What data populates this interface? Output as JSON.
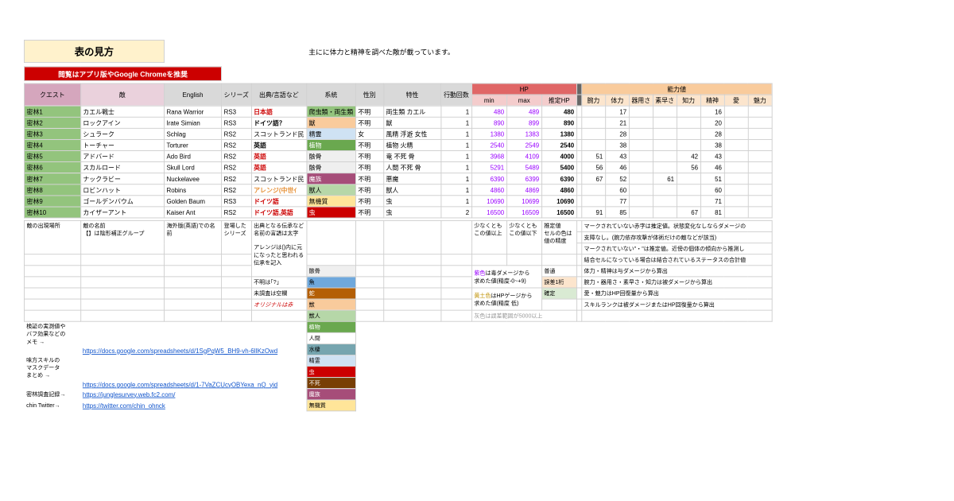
{
  "title": "表の見方",
  "subtitle": "主にに体力と精神を調べた敵が載っています。",
  "banner": "閲覧はアプリ版やGoogle Chromeを推奨",
  "headers": {
    "quest": "クエスト",
    "enemy": "敵",
    "english": "English",
    "series": "シリーズ",
    "source": "出典/言語など",
    "system": "系統",
    "sex": "性別",
    "toku": "特性",
    "act": "行動回数",
    "hp": "HP",
    "min": "min",
    "max": "max",
    "esthp": "推定HP",
    "stat": "能力値",
    "wan": "腕力",
    "tai": "体力",
    "ki": "器用さ",
    "su": "素早さ",
    "chi": "知力",
    "sei": "精神",
    "ai": "愛",
    "mi": "魅力"
  },
  "rows": [
    {
      "q": "密林1",
      "e": "カエル戦士",
      "en": "Rana Warrior",
      "s": "RS3",
      "src": "日本語",
      "srcCls": "red-bold",
      "sys": "爬虫類・両生類",
      "sysCls": "c-parasitic",
      "sex": "不明",
      "tok": "両生類 カエル",
      "act": 1,
      "min": 480,
      "max": 489,
      "hp": 480,
      "st": [
        "",
        "17",
        "",
        "",
        "",
        "16",
        "",
        ""
      ]
    },
    {
      "q": "密林2",
      "e": "ロックアイン",
      "en": "Irate Simian",
      "s": "RS3",
      "src": "ドイツ語？",
      "srcCls": "bold",
      "sys": "獣",
      "sysCls": "c-beast",
      "sex": "不明",
      "tok": "獣",
      "act": 1,
      "min": 890,
      "max": 899,
      "hp": 890,
      "st": [
        "",
        "21",
        "",
        "",
        "",
        "20",
        "",
        ""
      ]
    },
    {
      "q": "密林3",
      "e": "シュラーク",
      "en": "Schlag",
      "s": "RS2",
      "src": "スコットランド民",
      "srcCls": "",
      "sys": "精霊",
      "sysCls": "c-spirit",
      "sex": "女",
      "tok": "風精 浮遊 女性",
      "act": 1,
      "min": 1380,
      "max": 1383,
      "hp": 1380,
      "st": [
        "",
        "28",
        "",
        "",
        "",
        "28",
        "",
        ""
      ]
    },
    {
      "q": "密林4",
      "e": "トーチャー",
      "en": "Torturer",
      "s": "RS2",
      "src": "英語",
      "srcCls": "bold",
      "sys": "植物",
      "sysCls": "c-plant",
      "sex": "不明",
      "tok": "植物 火精",
      "act": 1,
      "min": 2540,
      "max": 2549,
      "hp": 2540,
      "st": [
        "",
        "38",
        "",
        "",
        "",
        "38",
        "",
        ""
      ]
    },
    {
      "q": "密林5",
      "e": "アドバード",
      "en": "Ado Bird",
      "s": "RS2",
      "src": "英語",
      "srcCls": "red-bold",
      "sys": "骸骨",
      "sysCls": "c-skeleton",
      "sex": "不明",
      "tok": "竜 不死 骨",
      "act": 1,
      "min": 3968,
      "max": 4109,
      "hp": 4000,
      "st": [
        "51",
        "43",
        "",
        "",
        "42",
        "43",
        "",
        ""
      ]
    },
    {
      "q": "密林6",
      "e": "スカルロード",
      "en": "Skull Lord",
      "s": "RS2",
      "src": "英語",
      "srcCls": "red-bold",
      "sys": "骸骨",
      "sysCls": "c-skeleton",
      "sex": "不明",
      "tok": "人間 不死 骨",
      "act": 1,
      "min": 5291,
      "max": 5489,
      "hp": 5400,
      "st": [
        "56",
        "46",
        "",
        "",
        "56",
        "46",
        "",
        ""
      ]
    },
    {
      "q": "密林7",
      "e": "ナックラビー",
      "en": "Nuckelavee",
      "s": "RS2",
      "src": "スコットランド民",
      "srcCls": "",
      "sys": "魔族",
      "sysCls": "c-demon",
      "sex": "不明",
      "tok": "悪魔",
      "act": 1,
      "min": 6390,
      "max": 6399,
      "hp": 6390,
      "st": [
        "67",
        "52",
        "",
        "61",
        "",
        "51",
        "",
        ""
      ]
    },
    {
      "q": "密林8",
      "e": "ロビンハット",
      "en": "Robins",
      "s": "RS2",
      "src": "アレンジ(中世ｲ",
      "srcCls": "orange-bold",
      "sys": "獣人",
      "sysCls": "c-beastman",
      "sex": "不明",
      "tok": "獣人",
      "act": 1,
      "min": 4860,
      "max": 4869,
      "hp": 4860,
      "st": [
        "",
        "60",
        "",
        "",
        "",
        "60",
        "",
        ""
      ]
    },
    {
      "q": "密林9",
      "e": "ゴールデンバウム",
      "en": "Golden Baum",
      "s": "RS3",
      "src": "ドイツ語",
      "srcCls": "red-bold",
      "sys": "無機質",
      "sysCls": "c-inorganic",
      "sex": "不明",
      "tok": "虫",
      "act": 1,
      "min": 10690,
      "max": 10699,
      "hp": 10690,
      "st": [
        "",
        "77",
        "",
        "",
        "",
        "71",
        "",
        ""
      ]
    },
    {
      "q": "密林10",
      "e": "カイザーアント",
      "en": "Kaiser Ant",
      "s": "RS2",
      "src": "ドイツ語,英語",
      "srcCls": "red-bold",
      "sys": "虫",
      "sysCls": "c-insect",
      "sex": "不明",
      "tok": "虫",
      "act": 2,
      "min": 16500,
      "max": 16509,
      "hp": 16500,
      "st": [
        "91",
        "85",
        "",
        "",
        "67",
        "81",
        "",
        ""
      ]
    }
  ],
  "notes": {
    "place": "敵の出現場所",
    "name": "敵の名前\n【】は陰形補正グループ",
    "overseas": "海外版(英語)での名前",
    "series": "登場したシリーズ",
    "originCell": "出典となる伝承など\n名前の言語は太字\n\nアレンジは()内に元になったと思われる伝承を記入",
    "unknown": "不明は｢?｣",
    "uninv": "未調査は空欄",
    "original": "オリジナルは赤",
    "atleast": "少なくとも\nこの値以上",
    "atmost": "少なくとも\nこの値以下",
    "estsub": "推定値\nセルの色は\n値の精度",
    "statNote1": "マークされていない赤字は推定値。状態変化なしならダメージの",
    "statNote2": "支障なし。(腕力依存攻撃が体術だけの敵などが該当)",
    "statNote3": "マークされていない\"・\"は推定値。近傍の個体の傾向から推測し",
    "statNote4": "結合セルになっている場合は結合されているステータスの合計値",
    "purpleNote": "紫色は毒ダメージから\n求めた値(精度-0~+9)",
    "yellowNote": "黄土色はHPゲージから\n求めた値(精度 低)",
    "grayNote": "灰色は誤差範囲が5000以上",
    "normal": "普通",
    "err1": "誤差1桁",
    "conf": "確定",
    "calc1": "体力・精神は与ダメージから算出",
    "calc2": "腕力・器用さ・素早さ・知力は被ダメージから算出",
    "calc3": "愛・魅力はHP回復量から算出",
    "calc4": "スキルランクは被ダメージまたはHP回復量から算出"
  },
  "links": {
    "memo": "検証の実測値や\nバフ効果などの\nメモ    →",
    "memoUrl": "https://docs.google.com/spreadsheets/d/1SgPqW5_BH9-vh-6lIKzOwd",
    "mask": "味方スキルの\nマスクデータ\nまとめ   →",
    "maskUrl": "https://docs.google.com/spreadsheets/d/1-7VaZCUcyOBYexa_nQ_yid",
    "survey": "密林調査記録→",
    "surveyUrl": "https://junglesurvey.web.fc2.com/",
    "twitter": "chin Twitter→",
    "twitterUrl": "https://twitter.com/chin_ohnck"
  },
  "systemList": [
    "骸骨",
    "魚",
    "蛇",
    "獣",
    "獣人",
    "植物",
    "人間",
    "水棲",
    "精霊",
    "虫",
    "不死",
    "魔族",
    "無機質"
  ],
  "systemCls": [
    "c-skeleton",
    "c-fish",
    "c-snake",
    "c-beast",
    "c-beastman",
    "c-plant",
    "c-human",
    "c-aquatic",
    "c-spirit",
    "c-insect",
    "c-undead",
    "c-demon",
    "c-inorganic"
  ]
}
